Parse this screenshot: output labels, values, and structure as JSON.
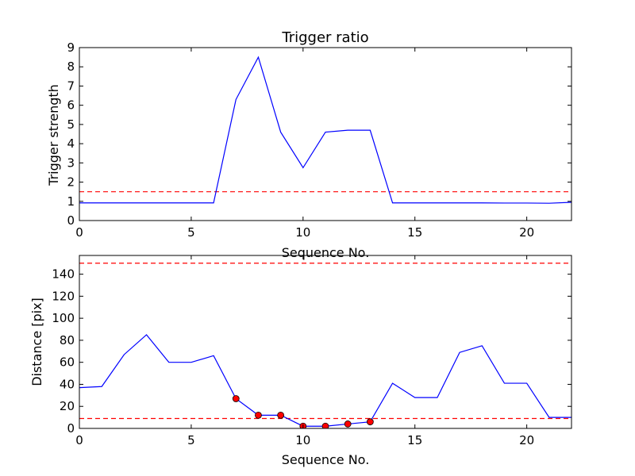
{
  "chart_data": [
    {
      "type": "line",
      "title": "Trigger ratio",
      "xlabel": "Sequence No.",
      "ylabel": "Trigger strength",
      "xlim": [
        0,
        22
      ],
      "ylim": [
        0,
        9
      ],
      "xticks": [
        0,
        5,
        10,
        15,
        20
      ],
      "yticks": [
        0,
        1,
        2,
        3,
        4,
        5,
        6,
        7,
        8,
        9
      ],
      "grid": false,
      "series": [
        {
          "color": "#0000ff",
          "x": [
            0,
            1,
            2,
            3,
            4,
            5,
            6,
            7,
            8,
            9,
            10,
            11,
            12,
            13,
            14,
            15,
            16,
            17,
            18,
            19,
            20,
            21,
            22
          ],
          "y": [
            0.92,
            0.92,
            0.92,
            0.92,
            0.92,
            0.92,
            0.92,
            6.3,
            8.5,
            4.6,
            2.75,
            4.6,
            4.7,
            4.7,
            0.92,
            0.92,
            0.92,
            0.92,
            0.92,
            0.91,
            0.91,
            0.9,
            0.95
          ]
        }
      ],
      "hlines": [
        {
          "y": 1.5,
          "color": "#ff0000",
          "style": "dashed"
        }
      ]
    },
    {
      "type": "line",
      "title": "",
      "xlabel": "Sequence No.",
      "ylabel": "Distance [pix]",
      "xlim": [
        0,
        22
      ],
      "ylim": [
        0,
        157
      ],
      "xticks": [
        0,
        5,
        10,
        15,
        20
      ],
      "yticks": [
        0,
        20,
        40,
        60,
        80,
        100,
        120,
        140
      ],
      "grid": false,
      "series": [
        {
          "color": "#0000ff",
          "x": [
            0,
            1,
            2,
            3,
            4,
            5,
            6,
            7,
            8,
            9,
            10,
            11,
            12,
            13,
            14,
            15,
            16,
            17,
            18,
            19,
            20,
            21,
            22
          ],
          "y": [
            37,
            38,
            67,
            85,
            60,
            60,
            66,
            27,
            12,
            12,
            2,
            2,
            4,
            6,
            41,
            28,
            28,
            69,
            75,
            41,
            41,
            10,
            10
          ]
        }
      ],
      "markers": {
        "color": "#ff0000",
        "x": [
          7,
          8,
          9,
          10,
          11,
          12,
          13
        ],
        "y": [
          27,
          12,
          12,
          2,
          2,
          4,
          6
        ]
      },
      "hlines": [
        {
          "y": 150,
          "color": "#ff0000",
          "style": "dashed"
        },
        {
          "y": 9,
          "color": "#ff0000",
          "style": "dashed"
        }
      ]
    }
  ]
}
